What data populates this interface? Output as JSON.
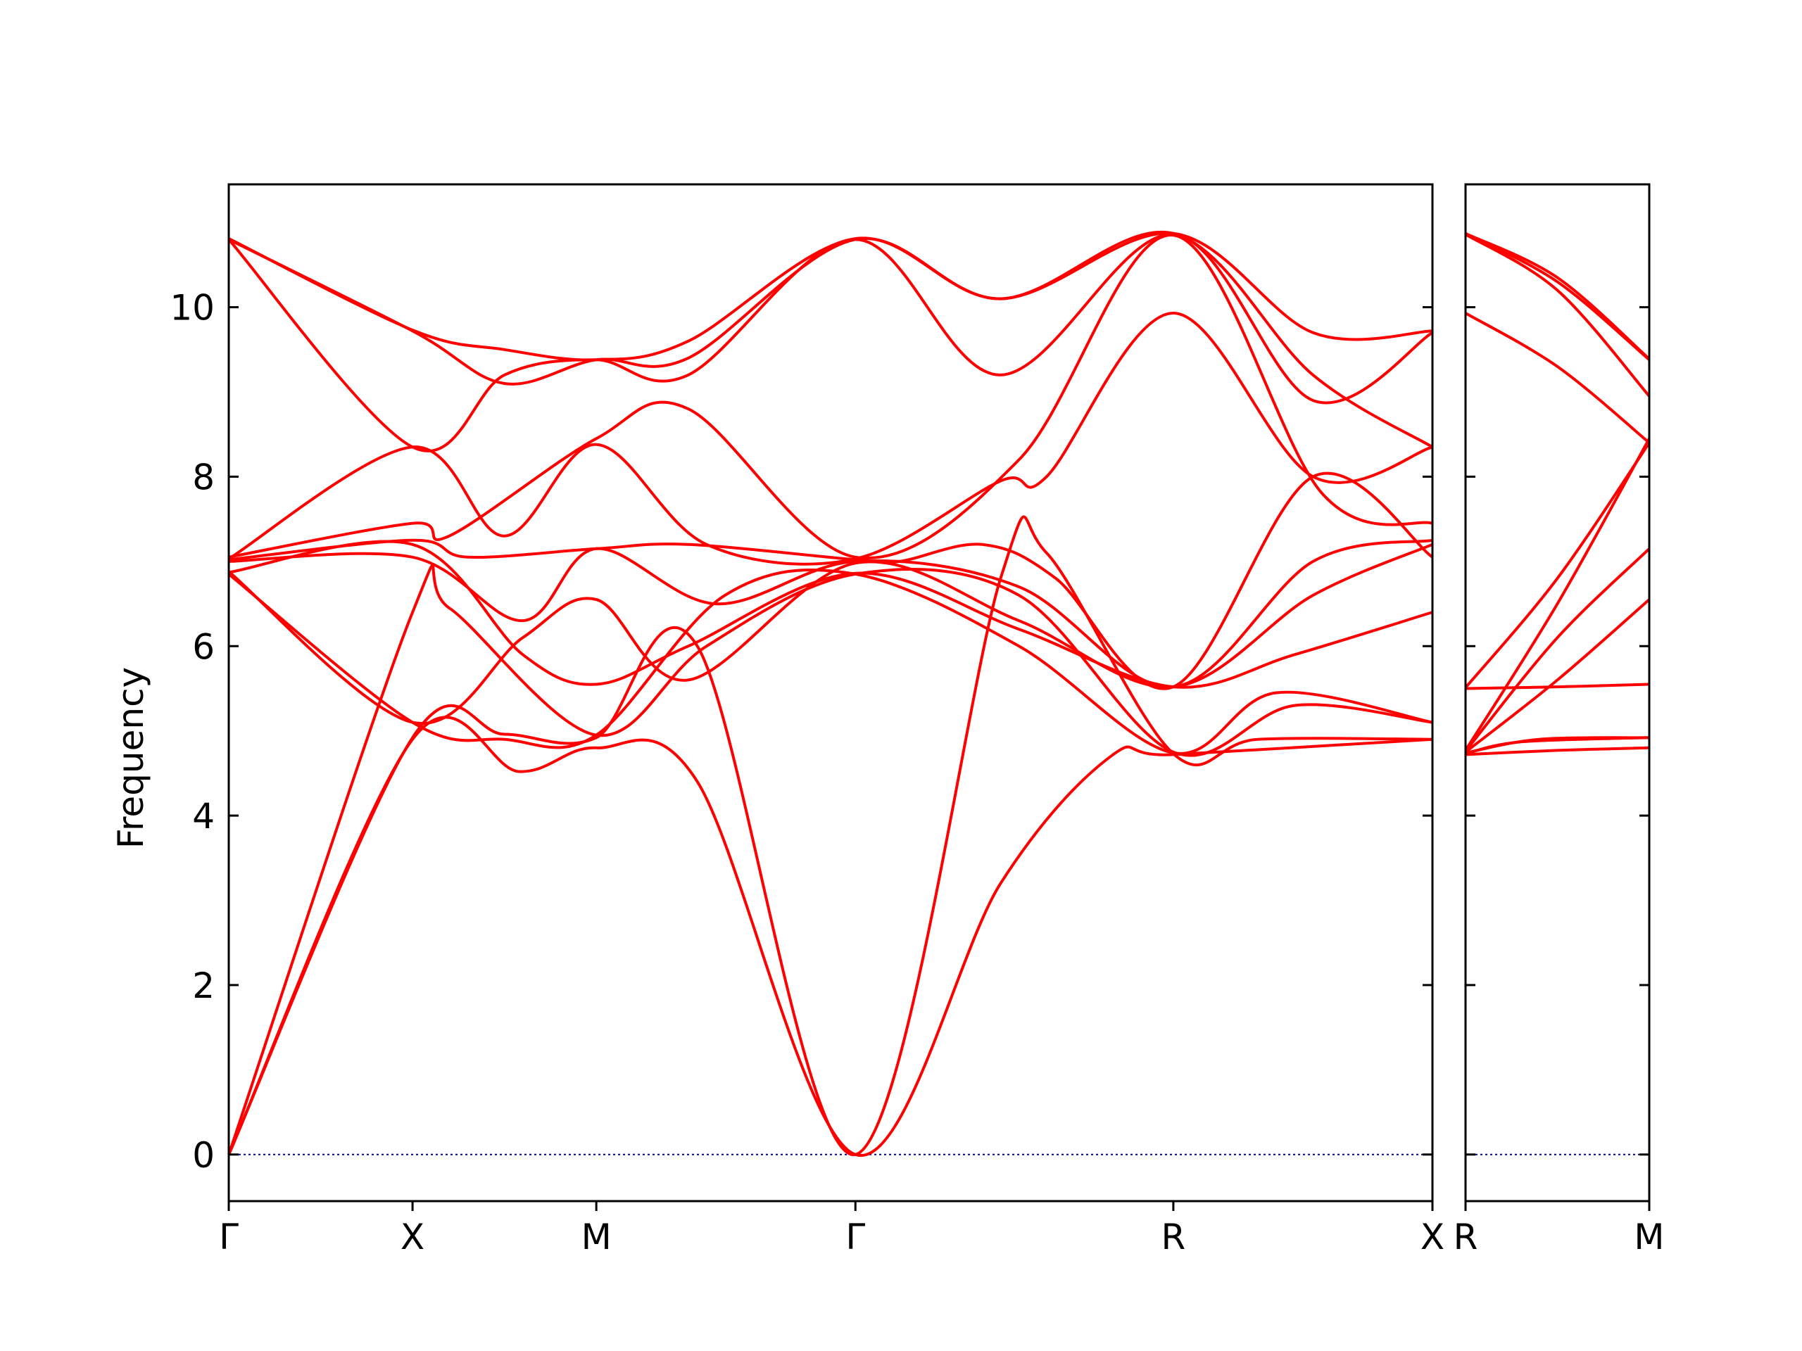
{
  "chart_data": {
    "type": "line",
    "ylabel": "Frequency",
    "ylim": [
      -0.55,
      11.45
    ],
    "yticks": [
      0,
      2,
      4,
      6,
      8,
      10
    ],
    "grid": false,
    "legend": "none",
    "line_color": "#ff0000",
    "zero_line_color": "#00008b",
    "panels": [
      {
        "x_range": [
          0,
          6.55
        ],
        "xticks": [
          {
            "x": 0,
            "label": "Γ"
          },
          {
            "x": 1,
            "label": "X"
          },
          {
            "x": 2,
            "label": "M"
          },
          {
            "x": 3.41,
            "label": "Γ"
          },
          {
            "x": 5.14,
            "label": "R"
          },
          {
            "x": 6.55,
            "label": "X"
          }
        ],
        "series": [
          {
            "name": "",
            "points": [
              [
                0,
                0
              ],
              [
                1,
                4.9
              ],
              [
                1.58,
                4.52
              ],
              [
                2,
                4.8
              ],
              [
                2.55,
                4.4
              ],
              [
                3.41,
                0
              ],
              [
                4.2,
                3.2
              ],
              [
                4.8,
                4.7
              ],
              [
                5.14,
                4.72
              ],
              [
                6.55,
                4.9
              ]
            ]
          },
          {
            "name": "",
            "points": [
              [
                0,
                0
              ],
              [
                1,
                4.92
              ],
              [
                1.5,
                4.96
              ],
              [
                2,
                4.92
              ],
              [
                2.55,
                6.0
              ],
              [
                3.41,
                0
              ],
              [
                4.2,
                6.8
              ],
              [
                4.45,
                7.1
              ],
              [
                5.14,
                4.73
              ],
              [
                5.6,
                4.9
              ],
              [
                6.55,
                4.9
              ]
            ]
          },
          {
            "name": "",
            "points": [
              [
                0,
                0
              ],
              [
                1,
                6.4
              ],
              [
                1.2,
                6.45
              ],
              [
                2,
                4.95
              ],
              [
                2.6,
                6.0
              ],
              [
                3.41,
                6.85
              ],
              [
                4.3,
                6.6
              ],
              [
                5.14,
                4.75
              ],
              [
                5.8,
                5.3
              ],
              [
                6.55,
                5.1
              ]
            ]
          },
          {
            "name": "",
            "points": [
              [
                0,
                6.85
              ],
              [
                1,
                5.1
              ],
              [
                1.5,
                4.9
              ],
              [
                2,
                4.95
              ],
              [
                2.7,
                6.6
              ],
              [
                3.41,
                6.85
              ],
              [
                4.3,
                6.0
              ],
              [
                5.14,
                4.74
              ],
              [
                5.7,
                5.45
              ],
              [
                6.55,
                5.1
              ]
            ]
          },
          {
            "name": "",
            "points": [
              [
                0,
                6.87
              ],
              [
                1,
                7.2
              ],
              [
                1.6,
                5.9
              ],
              [
                2,
                5.55
              ],
              [
                2.5,
                6.0
              ],
              [
                3.41,
                6.86
              ],
              [
                4.3,
                6.2
              ],
              [
                5.14,
                5.52
              ],
              [
                5.8,
                5.9
              ],
              [
                6.55,
                6.4
              ]
            ]
          },
          {
            "name": "",
            "points": [
              [
                0,
                6.88
              ],
              [
                1,
                5.1
              ],
              [
                1.6,
                6.1
              ],
              [
                2,
                6.55
              ],
              [
                2.5,
                5.6
              ],
              [
                3.41,
                6.98
              ],
              [
                4.3,
                6.3
              ],
              [
                5.14,
                5.52
              ],
              [
                5.9,
                6.6
              ],
              [
                6.55,
                7.2
              ]
            ]
          },
          {
            "name": "",
            "points": [
              [
                0,
                7.0
              ],
              [
                1,
                7.05
              ],
              [
                1.6,
                6.3
              ],
              [
                2,
                7.15
              ],
              [
                2.65,
                6.5
              ],
              [
                3.41,
                7.0
              ],
              [
                4.3,
                6.7
              ],
              [
                5.14,
                5.52
              ],
              [
                5.9,
                7.0
              ],
              [
                6.55,
                7.25
              ]
            ]
          },
          {
            "name": "",
            "points": [
              [
                0,
                7.02
              ],
              [
                1,
                7.25
              ],
              [
                1.3,
                7.05
              ],
              [
                2,
                7.15
              ],
              [
                2.5,
                7.2
              ],
              [
                3.41,
                7.02
              ],
              [
                3.65,
                7.0
              ],
              [
                4.1,
                7.2
              ],
              [
                4.5,
                6.8
              ],
              [
                5.14,
                5.52
              ],
              [
                5.9,
                8.0
              ],
              [
                6.55,
                7.05
              ]
            ]
          },
          {
            "name": "",
            "points": [
              [
                0,
                7.03
              ],
              [
                1,
                8.35
              ],
              [
                1.5,
                7.3
              ],
              [
                2,
                8.38
              ],
              [
                2.6,
                7.2
              ],
              [
                3.41,
                7.03
              ],
              [
                4.2,
                7.95
              ],
              [
                4.45,
                8.0
              ],
              [
                5.14,
                9.93
              ],
              [
                5.9,
                8.0
              ],
              [
                6.55,
                8.35
              ]
            ]
          },
          {
            "name": "",
            "points": [
              [
                0,
                7.05
              ],
              [
                1,
                7.45
              ],
              [
                1.2,
                7.3
              ],
              [
                2,
                8.45
              ],
              [
                2.5,
                8.8
              ],
              [
                3.41,
                7.05
              ],
              [
                4.3,
                8.2
              ],
              [
                5.14,
                10.85
              ],
              [
                5.95,
                7.8
              ],
              [
                6.55,
                7.45
              ]
            ]
          },
          {
            "name": "",
            "points": [
              [
                0,
                10.8
              ],
              [
                1,
                8.35
              ],
              [
                1.5,
                9.2
              ],
              [
                2,
                9.38
              ],
              [
                2.5,
                9.2
              ],
              [
                3.41,
                10.8
              ],
              [
                4.2,
                9.2
              ],
              [
                5.14,
                10.86
              ],
              [
                5.9,
                8.9
              ],
              [
                6.55,
                9.7
              ]
            ]
          },
          {
            "name": "",
            "points": [
              [
                0,
                10.8
              ],
              [
                1,
                9.72
              ],
              [
                1.5,
                9.1
              ],
              [
                2,
                9.38
              ],
              [
                2.5,
                9.4
              ],
              [
                3.41,
                10.8
              ],
              [
                4.2,
                10.1
              ],
              [
                5.14,
                10.87
              ],
              [
                5.9,
                9.2
              ],
              [
                6.55,
                8.35
              ]
            ]
          },
          {
            "name": "",
            "points": [
              [
                0,
                10.81
              ],
              [
                1,
                9.73
              ],
              [
                1.5,
                9.5
              ],
              [
                2,
                9.38
              ],
              [
                2.5,
                9.6
              ],
              [
                3.41,
                10.81
              ],
              [
                4.2,
                10.1
              ],
              [
                5.14,
                10.87
              ],
              [
                5.9,
                9.7
              ],
              [
                6.55,
                9.72
              ]
            ]
          }
        ]
      },
      {
        "x_range": [
          0,
          1
        ],
        "xticks": [
          {
            "x": 0,
            "label": "R"
          },
          {
            "x": 1,
            "label": "M"
          }
        ],
        "series": [
          {
            "name": "",
            "points": [
              [
                0,
                4.72
              ],
              [
                0.5,
                4.77
              ],
              [
                1,
                4.8
              ]
            ]
          },
          {
            "name": "",
            "points": [
              [
                0,
                4.73
              ],
              [
                0.3,
                4.87
              ],
              [
                1,
                4.92
              ]
            ]
          },
          {
            "name": "",
            "points": [
              [
                0,
                4.74
              ],
              [
                0.4,
                4.9
              ],
              [
                1,
                4.92
              ]
            ]
          },
          {
            "name": "",
            "points": [
              [
                0,
                4.75
              ],
              [
                0.5,
                5.6
              ],
              [
                1,
                6.55
              ]
            ]
          },
          {
            "name": "",
            "points": [
              [
                0,
                4.76
              ],
              [
                0.5,
                6.1
              ],
              [
                1,
                7.15
              ]
            ]
          },
          {
            "name": "",
            "points": [
              [
                0,
                5.5
              ],
              [
                0.5,
                5.52
              ],
              [
                1,
                5.55
              ]
            ]
          },
          {
            "name": "",
            "points": [
              [
                0,
                5.51
              ],
              [
                0.5,
                6.8
              ],
              [
                1,
                8.4
              ]
            ]
          },
          {
            "name": "",
            "points": [
              [
                0,
                4.77
              ],
              [
                0.5,
                6.5
              ],
              [
                1,
                8.45
              ]
            ]
          },
          {
            "name": "",
            "points": [
              [
                0,
                9.93
              ],
              [
                0.5,
                9.3
              ],
              [
                1,
                8.4
              ]
            ]
          },
          {
            "name": "",
            "points": [
              [
                0,
                10.86
              ],
              [
                0.5,
                10.2
              ],
              [
                1,
                8.95
              ]
            ]
          },
          {
            "name": "",
            "points": [
              [
                0,
                10.87
              ],
              [
                0.5,
                10.3
              ],
              [
                1,
                9.38
              ]
            ]
          },
          {
            "name": "",
            "points": [
              [
                0,
                10.87
              ],
              [
                0.5,
                10.35
              ],
              [
                1,
                9.39
              ]
            ]
          }
        ]
      }
    ]
  }
}
